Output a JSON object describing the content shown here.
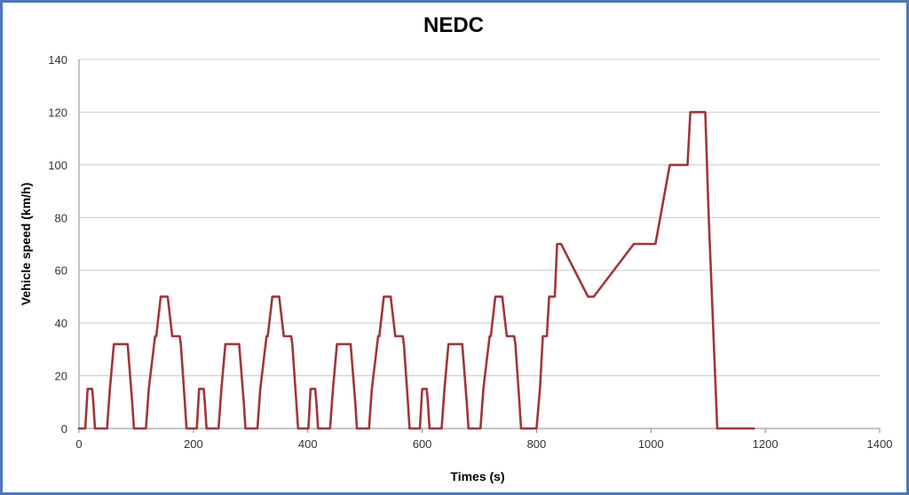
{
  "chart_data": {
    "type": "line",
    "title": "NEDC",
    "xlabel": "Times (s)",
    "ylabel": "Vehicle speed (km/h)",
    "xlim": [
      0,
      1400
    ],
    "ylim": [
      0,
      140
    ],
    "xticks": [
      0,
      200,
      400,
      600,
      800,
      1000,
      1200,
      1400
    ],
    "yticks": [
      0,
      20,
      40,
      60,
      80,
      100,
      120,
      140
    ],
    "grid": true,
    "legend": "none",
    "colors": {
      "series": "#a0363c",
      "frame": "#4a78b8"
    },
    "series": [
      {
        "x": [
          0,
          11,
          15,
          23,
          25,
          28,
          49,
          54,
          61,
          85,
          93,
          96,
          117,
          122,
          133,
          135,
          143,
          155,
          163,
          176,
          178,
          185,
          188,
          195,
          206,
          210,
          218,
          220,
          223,
          244,
          249,
          256,
          280,
          288,
          291,
          312,
          317,
          328,
          330,
          338,
          350,
          358,
          371,
          373,
          380,
          383,
          390,
          401,
          405,
          413,
          415,
          418,
          439,
          444,
          451,
          475,
          483,
          486,
          507,
          512,
          523,
          525,
          533,
          545,
          553,
          566,
          568,
          575,
          578,
          585,
          596,
          600,
          608,
          610,
          613,
          634,
          639,
          646,
          670,
          678,
          681,
          702,
          707,
          718,
          720,
          728,
          740,
          748,
          761,
          763,
          770,
          773,
          780,
          800,
          806,
          811,
          818,
          822,
          832,
          836,
          843,
          890,
          900,
          970,
          976,
          1000,
          1008,
          1033,
          1043,
          1064,
          1069,
          1095,
          1101,
          1116,
          1120,
          1124,
          1145,
          1159,
          1164,
          1180
        ],
        "y": [
          0,
          0,
          15,
          15,
          10,
          0,
          0,
          15,
          32,
          32,
          10,
          0,
          0,
          15,
          35,
          35,
          50,
          50,
          35,
          35,
          32,
          10,
          0,
          0,
          0,
          15,
          15,
          10,
          0,
          0,
          15,
          32,
          32,
          10,
          0,
          0,
          15,
          35,
          35,
          50,
          50,
          35,
          35,
          32,
          10,
          0,
          0,
          0,
          15,
          15,
          10,
          0,
          0,
          15,
          32,
          32,
          10,
          0,
          0,
          15,
          35,
          35,
          50,
          50,
          35,
          35,
          32,
          10,
          0,
          0,
          0,
          15,
          15,
          10,
          0,
          0,
          15,
          32,
          32,
          10,
          0,
          0,
          15,
          35,
          35,
          50,
          50,
          35,
          35,
          32,
          10,
          0,
          0,
          0,
          15,
          35,
          35,
          50,
          50,
          70,
          70,
          50,
          50,
          70,
          70,
          70,
          70,
          100,
          100,
          100,
          120,
          120,
          80,
          0,
          0,
          0,
          0,
          0,
          0,
          0
        ]
      }
    ]
  }
}
